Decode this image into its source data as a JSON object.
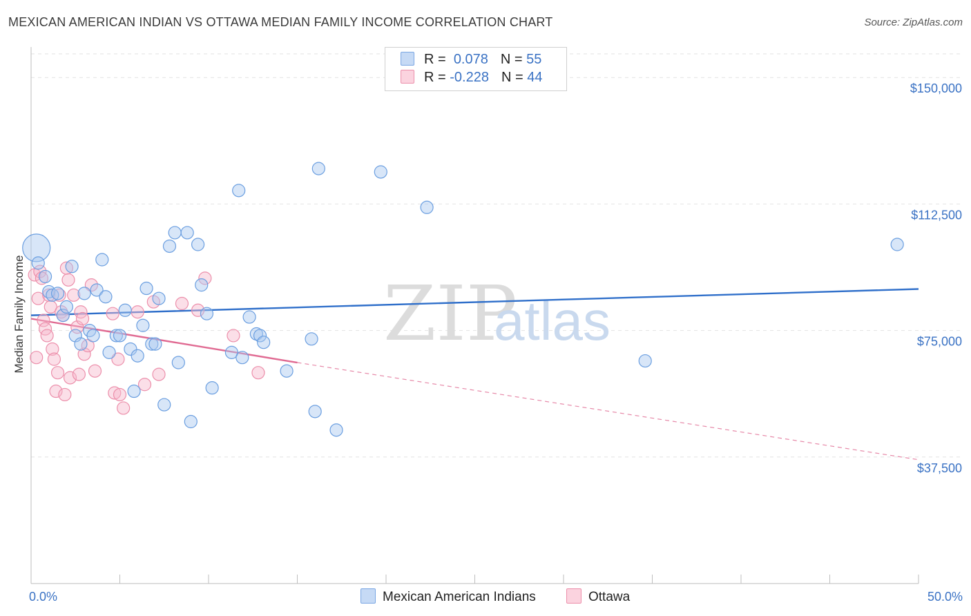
{
  "header": {
    "title": "MEXICAN AMERICAN INDIAN VS OTTAWA MEDIAN FAMILY INCOME CORRELATION CHART",
    "source": "Source: ZipAtlas.com"
  },
  "watermark": {
    "zip": "ZIP",
    "atlas": "atlas"
  },
  "legend": {
    "rows": [
      {
        "r_label": "R =",
        "r_value": "0.078",
        "n_label": "N =",
        "n_value": "55",
        "color": "#a9c7ef"
      },
      {
        "r_label": "R =",
        "r_value": "-0.228",
        "n_label": "N =",
        "n_value": "44",
        "color": "#f6b9cc"
      }
    ]
  },
  "bottom_legend": [
    {
      "label": "Mexican American Indians",
      "color": "#a9c7ef"
    },
    {
      "label": "Ottawa",
      "color": "#f6b9cc"
    }
  ],
  "chart_data": {
    "type": "scatter",
    "title": "MEXICAN AMERICAN INDIAN VS OTTAWA MEDIAN FAMILY INCOME CORRELATION CHART",
    "xlabel": "",
    "ylabel": "Median Family Income",
    "xlim": [
      0,
      50
    ],
    "ylim": [
      0,
      157000
    ],
    "x_tick_labels": [
      "0.0%",
      "50.0%"
    ],
    "y_ticks": [
      37500,
      75000,
      112500,
      150000
    ],
    "y_tick_labels": [
      "$37,500",
      "$75,000",
      "$112,500",
      "$150,000"
    ],
    "grid": true,
    "legend_position": "top-center",
    "series": [
      {
        "name": "Mexican American Indians",
        "color": "#6a9ee0",
        "fill": "#a9c7ef",
        "trend": {
          "x": [
            0,
            50
          ],
          "y": [
            79500,
            87300
          ],
          "style": "solid",
          "color": "#2f6fca"
        },
        "points": [
          {
            "x": 0.3,
            "y": 99500,
            "big": true
          },
          {
            "x": 0.4,
            "y": 95000
          },
          {
            "x": 0.8,
            "y": 91000
          },
          {
            "x": 1.0,
            "y": 86500
          },
          {
            "x": 1.2,
            "y": 85500
          },
          {
            "x": 1.5,
            "y": 86000
          },
          {
            "x": 1.8,
            "y": 79500
          },
          {
            "x": 2.0,
            "y": 82000
          },
          {
            "x": 2.3,
            "y": 94000
          },
          {
            "x": 2.5,
            "y": 73500
          },
          {
            "x": 2.8,
            "y": 71000
          },
          {
            "x": 3.0,
            "y": 86000
          },
          {
            "x": 3.3,
            "y": 75000
          },
          {
            "x": 3.5,
            "y": 73500
          },
          {
            "x": 3.7,
            "y": 87000
          },
          {
            "x": 4.0,
            "y": 96000
          },
          {
            "x": 4.2,
            "y": 85000
          },
          {
            "x": 4.4,
            "y": 68500
          },
          {
            "x": 4.8,
            "y": 73500
          },
          {
            "x": 5.0,
            "y": 73500
          },
          {
            "x": 5.3,
            "y": 81000
          },
          {
            "x": 5.6,
            "y": 69500
          },
          {
            "x": 5.8,
            "y": 57000
          },
          {
            "x": 6.0,
            "y": 67500
          },
          {
            "x": 6.3,
            "y": 76500
          },
          {
            "x": 6.5,
            "y": 87500
          },
          {
            "x": 6.8,
            "y": 71000
          },
          {
            "x": 7.0,
            "y": 71000
          },
          {
            "x": 7.2,
            "y": 84500
          },
          {
            "x": 7.5,
            "y": 53000
          },
          {
            "x": 7.8,
            "y": 100000
          },
          {
            "x": 8.1,
            "y": 104000
          },
          {
            "x": 8.3,
            "y": 65500
          },
          {
            "x": 8.8,
            "y": 104000
          },
          {
            "x": 9.0,
            "y": 48000
          },
          {
            "x": 9.4,
            "y": 100500
          },
          {
            "x": 9.6,
            "y": 88500
          },
          {
            "x": 9.9,
            "y": 80000
          },
          {
            "x": 10.2,
            "y": 58000
          },
          {
            "x": 11.3,
            "y": 68500
          },
          {
            "x": 11.7,
            "y": 116500
          },
          {
            "x": 11.9,
            "y": 67000
          },
          {
            "x": 12.3,
            "y": 79000
          },
          {
            "x": 12.7,
            "y": 74000
          },
          {
            "x": 12.9,
            "y": 73500
          },
          {
            "x": 13.1,
            "y": 71500
          },
          {
            "x": 14.4,
            "y": 63000
          },
          {
            "x": 15.8,
            "y": 72500
          },
          {
            "x": 16.0,
            "y": 51000
          },
          {
            "x": 16.2,
            "y": 123000
          },
          {
            "x": 17.2,
            "y": 45500
          },
          {
            "x": 19.7,
            "y": 122000
          },
          {
            "x": 22.3,
            "y": 111500
          },
          {
            "x": 34.6,
            "y": 66000
          },
          {
            "x": 48.8,
            "y": 100500
          }
        ]
      },
      {
        "name": "Ottawa",
        "color": "#ec8eaa",
        "fill": "#f6b9cc",
        "trend": {
          "x": [
            0,
            15
          ],
          "y": [
            78500,
            65500
          ],
          "style": "solid",
          "color": "#e06a92",
          "extension": {
            "x": [
              15,
              50
            ],
            "y": [
              65500,
              36700
            ],
            "style": "dashed"
          }
        },
        "points": [
          {
            "x": 0.2,
            "y": 91500
          },
          {
            "x": 0.4,
            "y": 84500
          },
          {
            "x": 0.5,
            "y": 92500
          },
          {
            "x": 0.6,
            "y": 90500
          },
          {
            "x": 0.7,
            "y": 78000
          },
          {
            "x": 0.8,
            "y": 75500
          },
          {
            "x": 0.9,
            "y": 73500
          },
          {
            "x": 1.0,
            "y": 85500
          },
          {
            "x": 1.1,
            "y": 82000
          },
          {
            "x": 1.2,
            "y": 69500
          },
          {
            "x": 1.3,
            "y": 66500
          },
          {
            "x": 1.4,
            "y": 57000
          },
          {
            "x": 1.6,
            "y": 85500
          },
          {
            "x": 1.7,
            "y": 80500
          },
          {
            "x": 1.8,
            "y": 79500
          },
          {
            "x": 1.9,
            "y": 56000
          },
          {
            "x": 2.0,
            "y": 93500
          },
          {
            "x": 2.1,
            "y": 90000
          },
          {
            "x": 2.2,
            "y": 61000
          },
          {
            "x": 2.4,
            "y": 85500
          },
          {
            "x": 2.6,
            "y": 76000
          },
          {
            "x": 2.7,
            "y": 62000
          },
          {
            "x": 2.8,
            "y": 80500
          },
          {
            "x": 2.9,
            "y": 78500
          },
          {
            "x": 3.0,
            "y": 68000
          },
          {
            "x": 3.2,
            "y": 70500
          },
          {
            "x": 3.4,
            "y": 88500
          },
          {
            "x": 3.6,
            "y": 63000
          },
          {
            "x": 4.6,
            "y": 80000
          },
          {
            "x": 4.7,
            "y": 56500
          },
          {
            "x": 4.9,
            "y": 66500
          },
          {
            "x": 5.0,
            "y": 56000
          },
          {
            "x": 5.2,
            "y": 52000
          },
          {
            "x": 6.0,
            "y": 80500
          },
          {
            "x": 6.4,
            "y": 59000
          },
          {
            "x": 6.9,
            "y": 83500
          },
          {
            "x": 7.2,
            "y": 62000
          },
          {
            "x": 8.5,
            "y": 83000
          },
          {
            "x": 9.4,
            "y": 81000
          },
          {
            "x": 9.8,
            "y": 90500
          },
          {
            "x": 11.4,
            "y": 73500
          },
          {
            "x": 12.8,
            "y": 62500
          },
          {
            "x": 0.3,
            "y": 67000
          },
          {
            "x": 1.5,
            "y": 62500
          }
        ]
      }
    ]
  }
}
